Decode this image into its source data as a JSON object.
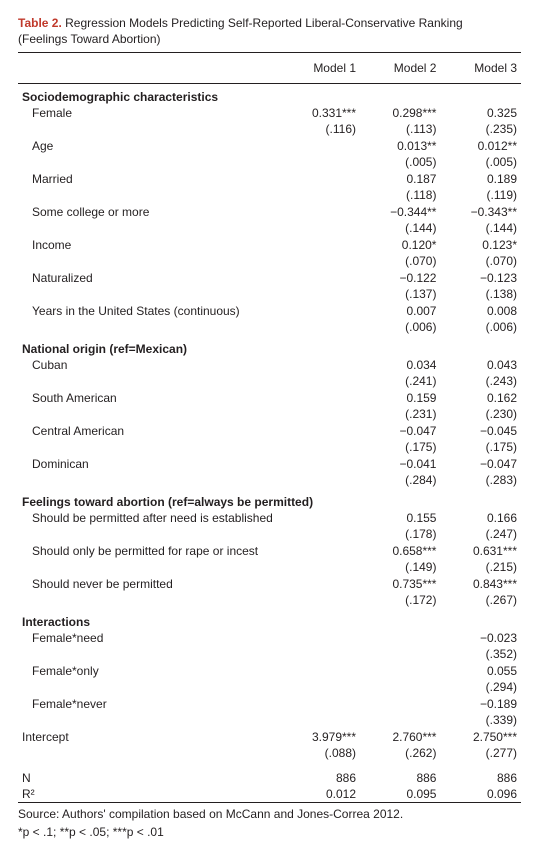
{
  "title_label": "Table 2.",
  "title_rest": " Regression Models Predicting Self-Reported Liberal-Conservative Ranking",
  "subtitle": "(Feelings Toward Abortion)",
  "columns": [
    "Model 1",
    "Model 2",
    "Model 3"
  ],
  "sections": [
    {
      "header": "Sociodemographic characteristics",
      "rows": [
        {
          "label": "Female",
          "c": [
            "0.331***",
            "0.298***",
            "0.325"
          ],
          "se": [
            "(.116)",
            "(.113)",
            "(.235)"
          ]
        },
        {
          "label": "Age",
          "c": [
            "",
            "0.013**",
            "0.012**"
          ],
          "se": [
            "",
            "(.005)",
            "(.005)"
          ]
        },
        {
          "label": "Married",
          "c": [
            "",
            "0.187",
            "0.189"
          ],
          "se": [
            "",
            "(.118)",
            "(.119)"
          ]
        },
        {
          "label": "Some college or more",
          "c": [
            "",
            "−0.344**",
            "−0.343**"
          ],
          "se": [
            "",
            "(.144)",
            "(.144)"
          ]
        },
        {
          "label": "Income",
          "c": [
            "",
            "0.120*",
            "0.123*"
          ],
          "se": [
            "",
            "(.070)",
            "(.070)"
          ]
        },
        {
          "label": "Naturalized",
          "c": [
            "",
            "−0.122",
            "−0.123"
          ],
          "se": [
            "",
            "(.137)",
            "(.138)"
          ]
        },
        {
          "label": "Years in the United States (continuous)",
          "c": [
            "",
            "0.007",
            "0.008"
          ],
          "se": [
            "",
            "(.006)",
            "(.006)"
          ]
        }
      ]
    },
    {
      "header": "National origin (ref=Mexican)",
      "rows": [
        {
          "label": "Cuban",
          "c": [
            "",
            "0.034",
            "0.043"
          ],
          "se": [
            "",
            "(.241)",
            "(.243)"
          ]
        },
        {
          "label": "South American",
          "c": [
            "",
            "0.159",
            "0.162"
          ],
          "se": [
            "",
            "(.231)",
            "(.230)"
          ]
        },
        {
          "label": "Central American",
          "c": [
            "",
            "−0.047",
            "−0.045"
          ],
          "se": [
            "",
            "(.175)",
            "(.175)"
          ]
        },
        {
          "label": "Dominican",
          "c": [
            "",
            "−0.041",
            "−0.047"
          ],
          "se": [
            "",
            "(.284)",
            "(.283)"
          ]
        }
      ]
    },
    {
      "header": "Feelings toward abortion (ref=always be permitted)",
      "rows": [
        {
          "label": "Should be permitted after need is established",
          "c": [
            "",
            "0.155",
            "0.166"
          ],
          "se": [
            "",
            "(.178)",
            "(.247)"
          ]
        },
        {
          "label": "Should only be permitted for rape or incest",
          "c": [
            "",
            "0.658***",
            "0.631***"
          ],
          "se": [
            "",
            "(.149)",
            "(.215)"
          ]
        },
        {
          "label": "Should never be permitted",
          "c": [
            "",
            "0.735***",
            "0.843***"
          ],
          "se": [
            "",
            "(.172)",
            "(.267)"
          ]
        }
      ]
    },
    {
      "header": "Interactions",
      "rows": [
        {
          "label": "Female*need",
          "c": [
            "",
            "",
            "−0.023"
          ],
          "se": [
            "",
            "",
            "(.352)"
          ]
        },
        {
          "label": "Female*only",
          "c": [
            "",
            "",
            "0.055"
          ],
          "se": [
            "",
            "",
            "(.294)"
          ]
        },
        {
          "label": "Female*never",
          "c": [
            "",
            "",
            "−0.189"
          ],
          "se": [
            "",
            "",
            "(.339)"
          ]
        }
      ]
    }
  ],
  "intercept": {
    "label": "Intercept",
    "c": [
      "3.979***",
      "2.760***",
      "2.750***"
    ],
    "se": [
      "(.088)",
      "(.262)",
      "(.277)"
    ]
  },
  "stats": [
    {
      "label": "N",
      "c": [
        "886",
        "886",
        "886"
      ]
    },
    {
      "label": "R²",
      "c": [
        "0.012",
        "0.095",
        "0.096"
      ]
    }
  ],
  "source": "Source: Authors' compilation based on McCann and Jones-Correa 2012.",
  "sig_note": "*p < .1; **p < .05; ***p < .01"
}
